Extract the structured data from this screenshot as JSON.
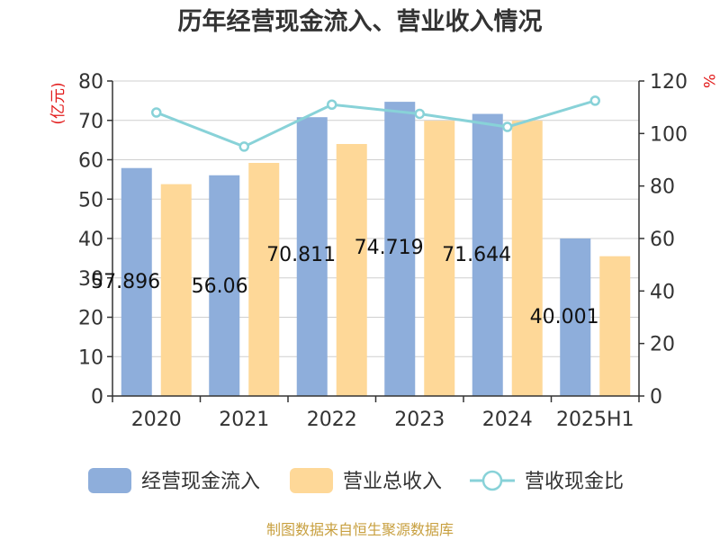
{
  "chart_data": {
    "type": "bar",
    "title": "历年经营现金流入、营业收入情况",
    "categories": [
      "2020",
      "2021",
      "2022",
      "2023",
      "2024",
      "2025H1"
    ],
    "y_left": {
      "unit": "(亿元)",
      "ylim": [
        0,
        80
      ],
      "ticks": [
        0,
        10,
        20,
        30,
        40,
        50,
        60,
        70,
        80
      ]
    },
    "y_right": {
      "unit": "%",
      "ylim": [
        0,
        120
      ],
      "ticks": [
        0,
        20,
        40,
        60,
        80,
        100,
        120
      ]
    },
    "series": [
      {
        "name": "经营现金流入",
        "type": "bar",
        "axis": "left",
        "color": "#8eaedb",
        "values": [
          57.896,
          56.06,
          70.81,
          74.719,
          71.644,
          40.001
        ],
        "labels": [
          "57.896",
          "56.06",
          "70.811",
          "74.719",
          "71.644",
          "40.001"
        ]
      },
      {
        "name": "营业总收入",
        "type": "bar",
        "axis": "left",
        "color": "#fed898",
        "values": [
          53.8,
          59.2,
          64.0,
          69.9,
          69.9,
          35.5
        ]
      },
      {
        "name": "营收现金比",
        "type": "line",
        "axis": "right",
        "color": "#88d2d8",
        "values": [
          108,
          95,
          111,
          107.5,
          102.5,
          112.5
        ]
      }
    ],
    "legend_position": "bottom",
    "grid": true
  },
  "source": "制图数据来自恒生聚源数据库"
}
